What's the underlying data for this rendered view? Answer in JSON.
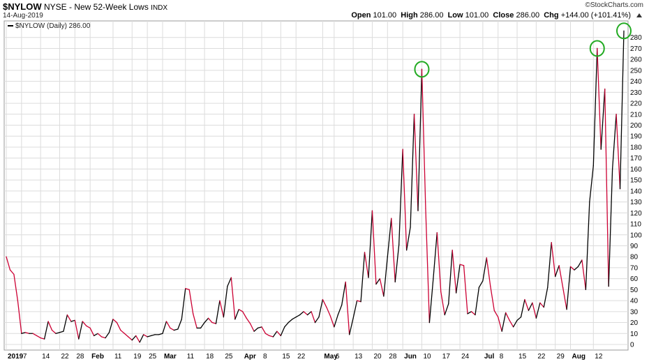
{
  "header": {
    "ticker": "$NYLOW",
    "exchange": "NYSE",
    "name": "New 52-Week Lows",
    "index_type": "INDX",
    "date": "14-Aug-2019",
    "brand": "©StockCharts.com",
    "open_label": "Open",
    "open_value": "101.00",
    "high_label": "High",
    "high_value": "286.00",
    "low_label": "Low",
    "low_value": "101.00",
    "close_label": "Close",
    "close_value": "286.00",
    "chg_label": "Chg",
    "chg_value": "+144.00 (+101.41%)"
  },
  "legend": {
    "label": "$NYLOW (Daily) 286.00"
  },
  "colors": {
    "up": "#000000",
    "down": "#cc0033",
    "highlight": "#22aa22",
    "grid": "#dcdcdc"
  },
  "chart_data": {
    "type": "line",
    "ylim": [
      0,
      290
    ],
    "yticks": [
      0,
      10,
      20,
      30,
      40,
      50,
      60,
      70,
      80,
      90,
      100,
      110,
      120,
      130,
      140,
      150,
      160,
      170,
      180,
      190,
      200,
      210,
      220,
      230,
      240,
      250,
      260,
      270,
      280
    ],
    "xticks": [
      {
        "label": "2019",
        "bold": true,
        "i": 0
      },
      {
        "label": "7",
        "i": 4
      },
      {
        "label": "14",
        "i": 9
      },
      {
        "label": "22",
        "i": 14
      },
      {
        "label": "28",
        "i": 18
      },
      {
        "label": "Feb",
        "bold": true,
        "i": 22
      },
      {
        "label": "11",
        "i": 28
      },
      {
        "label": "19",
        "i": 33
      },
      {
        "label": "25",
        "i": 37
      },
      {
        "label": "Mar",
        "bold": true,
        "i": 41
      },
      {
        "label": "11",
        "i": 47
      },
      {
        "label": "18",
        "i": 52
      },
      {
        "label": "25",
        "i": 57
      },
      {
        "label": "Apr",
        "bold": true,
        "i": 62
      },
      {
        "label": "8",
        "i": 67
      },
      {
        "label": "15",
        "i": 72
      },
      {
        "label": "22",
        "i": 76
      },
      {
        "label": "May",
        "bold": true,
        "i": 83
      },
      {
        "label": "6",
        "i": 86
      },
      {
        "label": "13",
        "i": 91
      },
      {
        "label": "20",
        "i": 96
      },
      {
        "label": "28",
        "i": 100
      },
      {
        "label": "Jun",
        "bold": true,
        "i": 104
      },
      {
        "label": "10",
        "i": 109
      },
      {
        "label": "17",
        "i": 114
      },
      {
        "label": "24",
        "i": 119
      },
      {
        "label": "Jul",
        "bold": true,
        "i": 125
      },
      {
        "label": "8",
        "i": 129
      },
      {
        "label": "15",
        "i": 134
      },
      {
        "label": "22",
        "i": 139
      },
      {
        "label": "29",
        "i": 144
      },
      {
        "label": "Aug",
        "bold": true,
        "i": 148
      },
      {
        "label": "12",
        "i": 154
      }
    ],
    "values": [
      80,
      68,
      64,
      40,
      10,
      11,
      10,
      10,
      8,
      6,
      5,
      21,
      13,
      10,
      11,
      12,
      27,
      21,
      22,
      5,
      21,
      17,
      15,
      8,
      10,
      7,
      6,
      11,
      23,
      20,
      13,
      10,
      7,
      4,
      8,
      2,
      9,
      7,
      8,
      9,
      9,
      10,
      21,
      15,
      13,
      14,
      23,
      51,
      50,
      28,
      15,
      15,
      20,
      24,
      20,
      19,
      40,
      25,
      53,
      61,
      23,
      32,
      30,
      24,
      19,
      12,
      15,
      16,
      10,
      8,
      7,
      12,
      8,
      16,
      20,
      23,
      25,
      27,
      30,
      27,
      30,
      20,
      25,
      41,
      34,
      26,
      16,
      27,
      36,
      57,
      9,
      24,
      40,
      39,
      84,
      61,
      122,
      55,
      60,
      44,
      80,
      115,
      57,
      91,
      178,
      86,
      107,
      210,
      122,
      251,
      124,
      20,
      60,
      102,
      48,
      27,
      37,
      86,
      47,
      73,
      72,
      28,
      30,
      27,
      52,
      58,
      79,
      53,
      31,
      25,
      12,
      29,
      22,
      16,
      22,
      25,
      41,
      31,
      38,
      24,
      38,
      34,
      52,
      93,
      62,
      72,
      52,
      32,
      71,
      68,
      71,
      77,
      50,
      130,
      163,
      270,
      178,
      233,
      53,
      160,
      210,
      142,
      286
    ]
  }
}
